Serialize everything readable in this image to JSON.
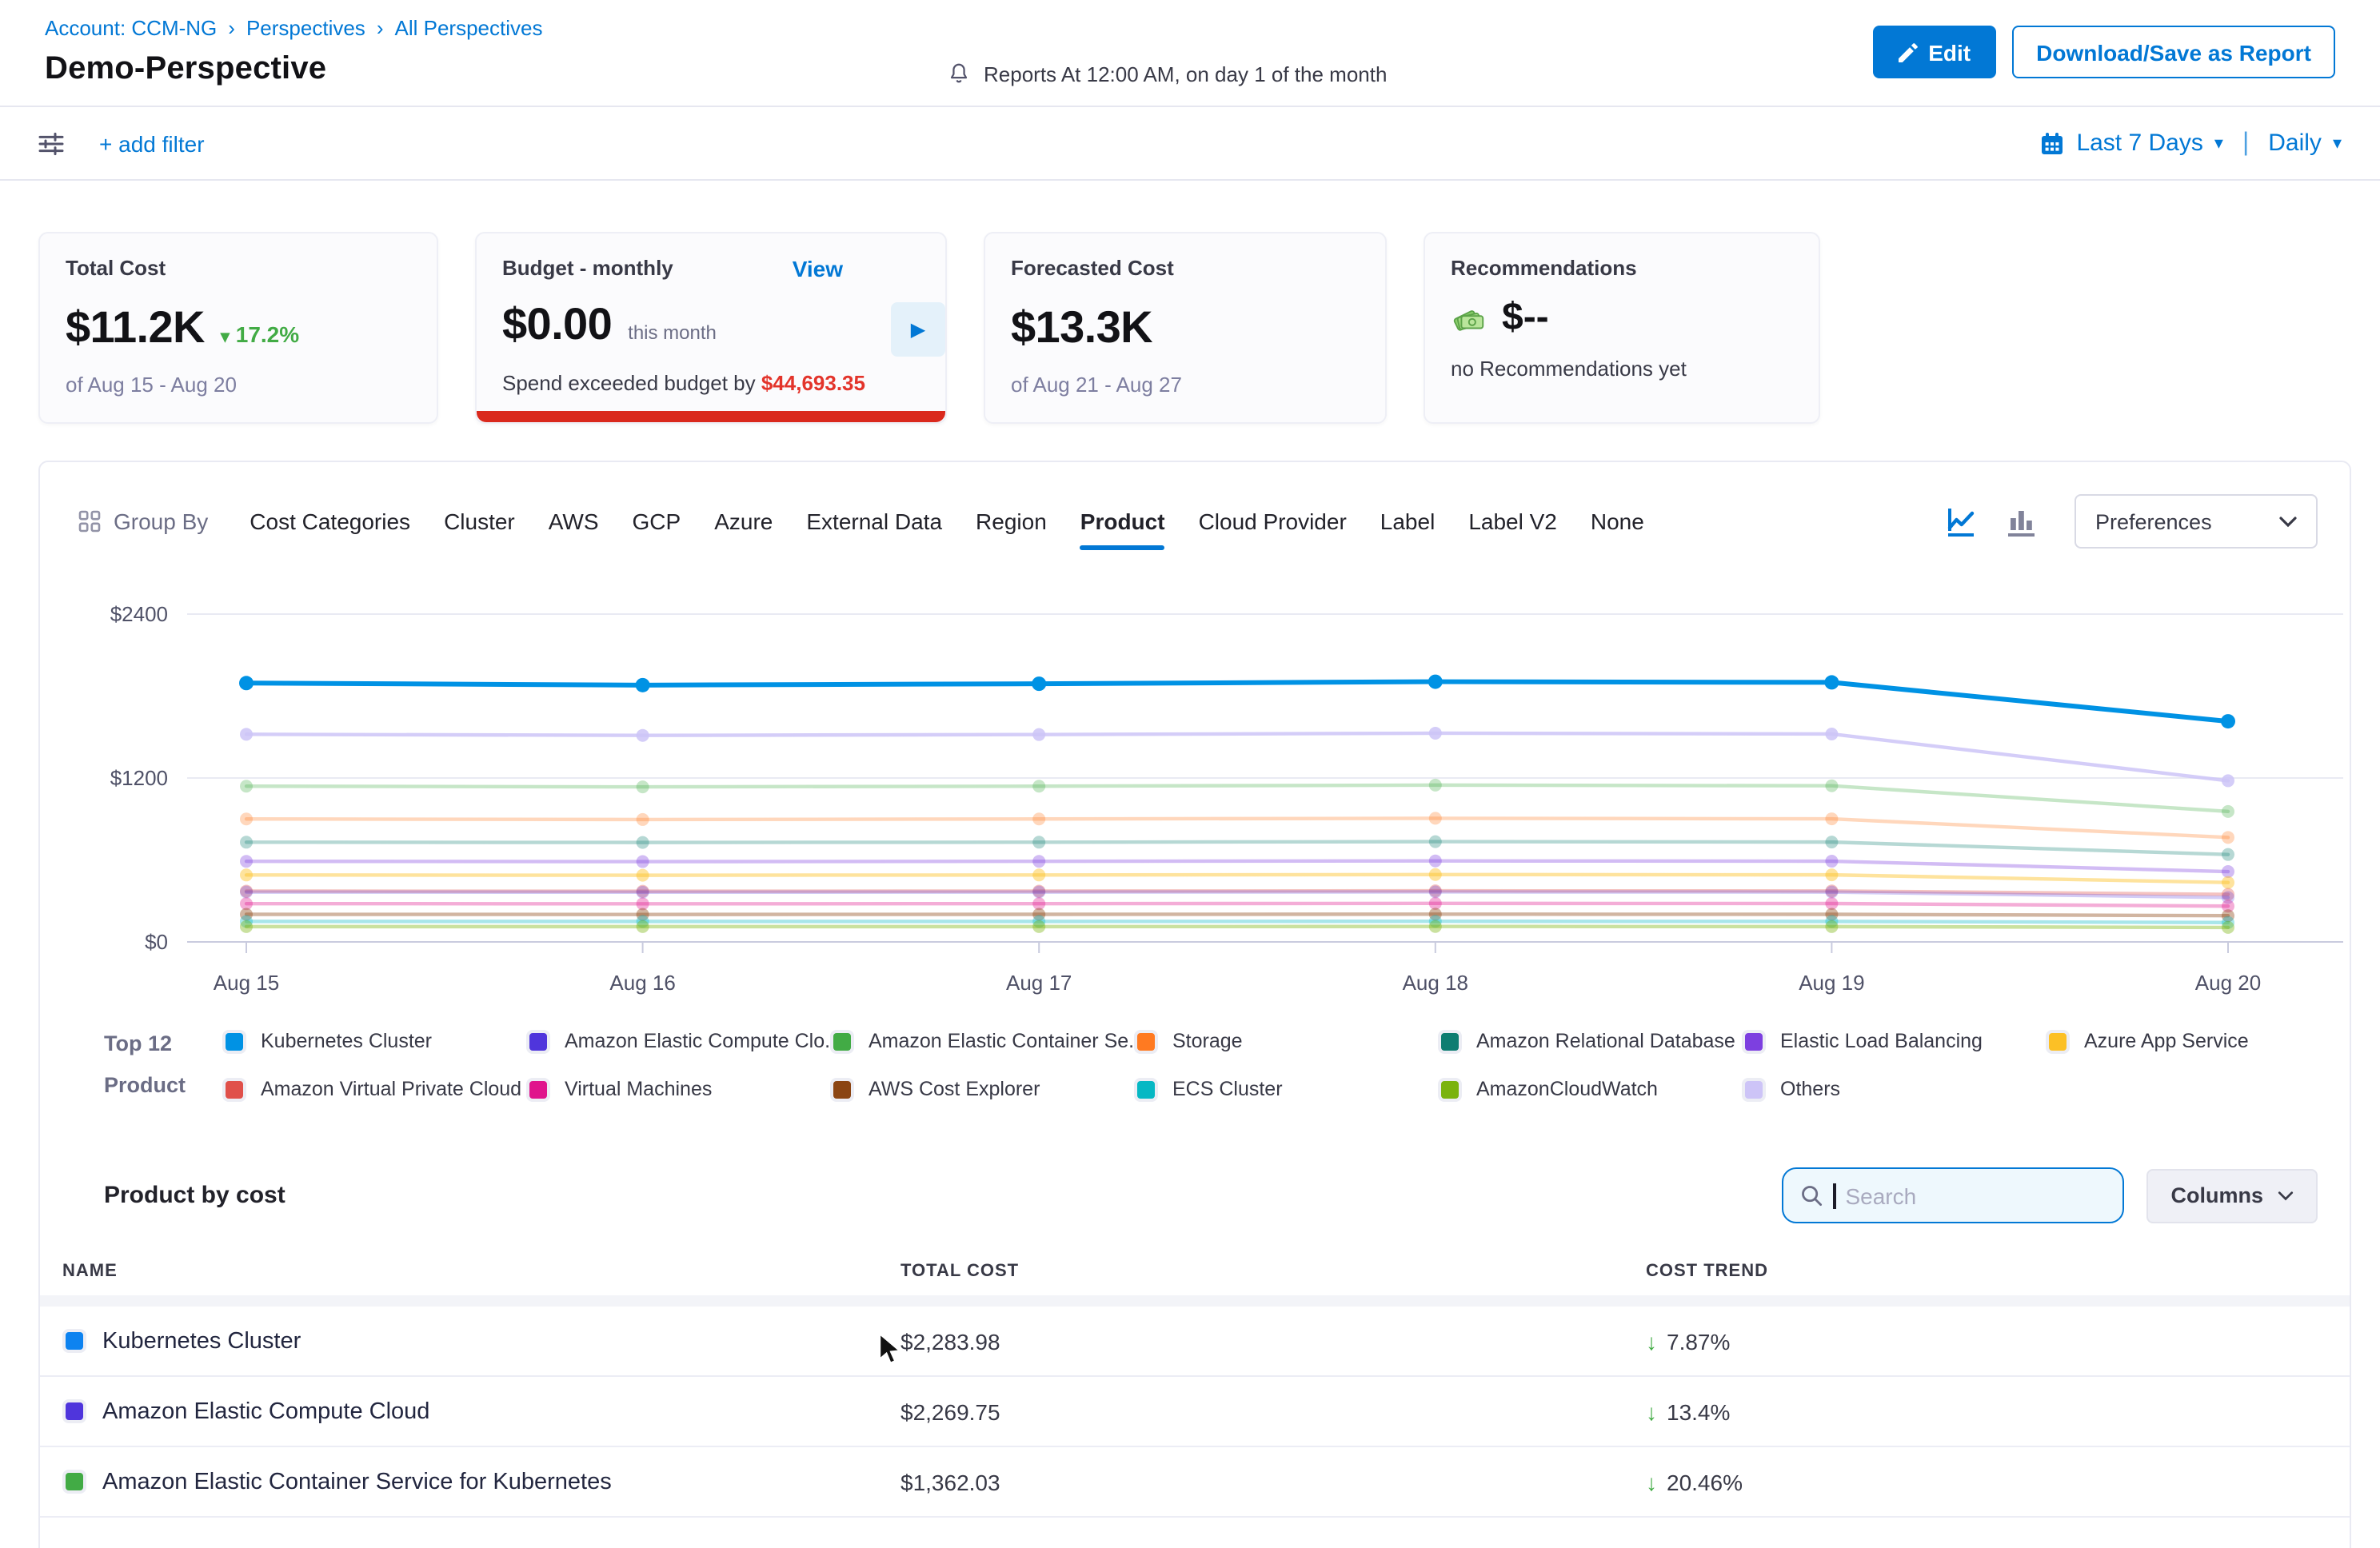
{
  "colors": {
    "primary": "#0278d5",
    "danger": "#da291d",
    "success": "#42ab45"
  },
  "breadcrumb": {
    "separator": "›",
    "items": [
      "Account: CCM-NG",
      "Perspectives",
      "All Perspectives"
    ]
  },
  "header": {
    "title": "Demo-Perspective",
    "reports_note": "Reports At 12:00 AM, on day 1 of the month",
    "edit_label": "Edit",
    "download_label": "Download/Save as Report"
  },
  "filter_bar": {
    "add_filter_label": "+ add filter",
    "date_range_label": "Last 7 Days",
    "granularity_label": "Daily",
    "separator": "|"
  },
  "cards": {
    "total_cost": {
      "title": "Total Cost",
      "value": "$11.2K",
      "trend_icon": "▾",
      "trend": "17.2%",
      "period": "of Aug 15 - Aug 20"
    },
    "budget": {
      "title": "Budget - monthly",
      "view_label": "View",
      "value": "$0.00",
      "value_suffix": "this month",
      "exceeded_text": "Spend exceeded budget by ",
      "exceeded_amount": "$44,693.35",
      "expand_icon": "▶"
    },
    "forecasted": {
      "title": "Forecasted Cost",
      "value": "$13.3K",
      "period": "of Aug 21 - Aug 27"
    },
    "recommendations": {
      "title": "Recommendations",
      "value": "$--",
      "note": "no Recommendations yet"
    }
  },
  "group_by": {
    "label": "Group By",
    "tabs": [
      "Cost Categories",
      "Cluster",
      "AWS",
      "GCP",
      "Azure",
      "External Data",
      "Region",
      "Product",
      "Cloud Provider",
      "Label",
      "Label V2",
      "None"
    ],
    "active_tab": "Product",
    "preferences_label": "Preferences"
  },
  "chart_data": {
    "type": "line",
    "x": [
      "Aug 15",
      "Aug 16",
      "Aug 17",
      "Aug 18",
      "Aug 19",
      "Aug 20"
    ],
    "ylim": [
      0,
      2400
    ],
    "yticks": [
      {
        "value": 0,
        "label": "$0"
      },
      {
        "value": 1200,
        "label": "$1200"
      },
      {
        "value": 2400,
        "label": "$2400"
      }
    ],
    "grid": true,
    "legend_position": "bottom",
    "series": [
      {
        "name": "Kubernetes Cluster",
        "color": "#0092e4",
        "emphasized": true,
        "opacity": 1.0,
        "values": [
          1895,
          1880,
          1890,
          1905,
          1900,
          1615
        ]
      },
      {
        "name": "Others",
        "color": "#cdc4f7",
        "emphasized": false,
        "opacity": 0.85,
        "values": [
          1520,
          1512,
          1518,
          1528,
          1522,
          1180
        ]
      },
      {
        "name": "Amazon Elastic Container Se...",
        "color": "#42ab45",
        "emphasized": false,
        "opacity": 0.3,
        "values": [
          1140,
          1135,
          1140,
          1148,
          1143,
          955
        ]
      },
      {
        "name": "Storage",
        "color": "#ff7a21",
        "emphasized": false,
        "opacity": 0.3,
        "values": [
          900,
          896,
          900,
          905,
          901,
          765
        ]
      },
      {
        "name": "Amazon Relational Database ...",
        "color": "#0d7d71",
        "emphasized": false,
        "opacity": 0.3,
        "values": [
          730,
          728,
          730,
          734,
          731,
          640
        ]
      },
      {
        "name": "Elastic Load Balancing",
        "color": "#7d3fe0",
        "emphasized": false,
        "opacity": 0.35,
        "values": [
          590,
          588,
          590,
          593,
          591,
          515
        ]
      },
      {
        "name": "Azure App Service",
        "color": "#fcc026",
        "emphasized": false,
        "opacity": 0.45,
        "values": [
          490,
          488,
          490,
          493,
          491,
          435
        ]
      },
      {
        "name": "Amazon Virtual Private Cloud",
        "color": "#e0504a",
        "emphasized": false,
        "opacity": 0.35,
        "values": [
          372,
          371,
          372,
          374,
          373,
          348
        ]
      },
      {
        "name": "Amazon Elastic Compute Clo...",
        "color": "#4f35dc",
        "emphasized": false,
        "opacity": 0.25,
        "values": [
          365,
          364,
          365,
          366,
          365,
          325
        ]
      },
      {
        "name": "Virtual Machines",
        "color": "#e0148c",
        "emphasized": false,
        "opacity": 0.35,
        "values": [
          280,
          279,
          280,
          282,
          281,
          262
        ]
      },
      {
        "name": "AWS Cost Explorer",
        "color": "#8b4513",
        "emphasized": false,
        "opacity": 0.4,
        "values": [
          202,
          201,
          202,
          203,
          202,
          192
        ]
      },
      {
        "name": "ECS Cluster",
        "color": "#06b8c4",
        "emphasized": false,
        "opacity": 0.35,
        "values": [
          150,
          150,
          150,
          151,
          150,
          142
        ]
      },
      {
        "name": "AmazonCloudWatch",
        "color": "#7ab30e",
        "emphasized": false,
        "opacity": 0.4,
        "values": [
          112,
          112,
          112,
          113,
          112,
          106
        ]
      }
    ]
  },
  "legend": {
    "caption_line1": "Top 12",
    "caption_line2": "Product",
    "items": [
      {
        "label": "Kubernetes Cluster",
        "color": "#0092e4"
      },
      {
        "label": "Amazon Elastic Compute Clo...",
        "color": "#4f35dc"
      },
      {
        "label": "Amazon Elastic Container Se...",
        "color": "#42ab45"
      },
      {
        "label": "Storage",
        "color": "#ff7a21"
      },
      {
        "label": "Amazon Relational Database ...",
        "color": "#0d7d71"
      },
      {
        "label": "Elastic Load Balancing",
        "color": "#7d3fe0"
      },
      {
        "label": "Azure App Service",
        "color": "#fcc026"
      },
      {
        "label": "Amazon Virtual Private Cloud",
        "color": "#e0504a"
      },
      {
        "label": "Virtual Machines",
        "color": "#e0148c"
      },
      {
        "label": "AWS Cost Explorer",
        "color": "#8b4513"
      },
      {
        "label": "ECS Cluster",
        "color": "#06b8c4"
      },
      {
        "label": "AmazonCloudWatch",
        "color": "#7ab30e"
      },
      {
        "label": "Others",
        "color": "#cdc4f7"
      }
    ]
  },
  "table": {
    "title": "Product by cost",
    "search_placeholder": "Search",
    "columns_label": "Columns",
    "headers": [
      "NAME",
      "TOTAL COST",
      "COST TREND"
    ],
    "trend_arrow": "↓",
    "rows": [
      {
        "name": "Kubernetes Cluster",
        "color": "#0d83f0",
        "total_cost": "$2,283.98",
        "trend": "7.87%"
      },
      {
        "name": "Amazon Elastic Compute Cloud",
        "color": "#4f35dc",
        "total_cost": "$2,269.75",
        "trend": "13.4%"
      },
      {
        "name": "Amazon Elastic Container Service for Kubernetes",
        "color": "#42ab45",
        "total_cost": "$1,362.03",
        "trend": "20.46%"
      }
    ]
  }
}
